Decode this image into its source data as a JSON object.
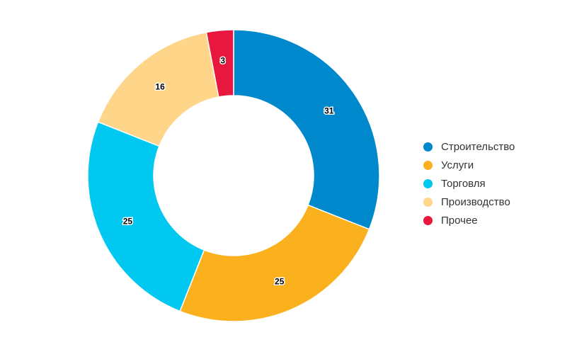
{
  "chart_data": {
    "type": "pie",
    "title": "",
    "legend_position": "right",
    "categories": [
      "Строительство",
      "Услуги",
      "Торговля",
      "Производство",
      "Прочее"
    ],
    "values": [
      31,
      25,
      25,
      16,
      3
    ],
    "labels": [
      "31",
      "25",
      "25",
      "16",
      "3"
    ],
    "colors": [
      "#0088cc",
      "#fbb11e",
      "#00c8f0",
      "#ffd589",
      "#e8173d"
    ]
  }
}
